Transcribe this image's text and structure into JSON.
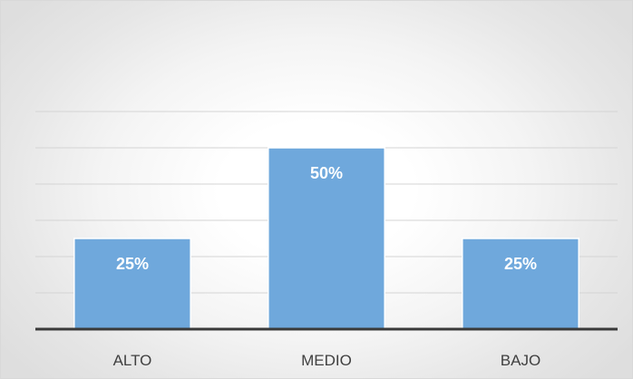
{
  "chart_data": {
    "type": "bar",
    "categories": [
      "ALTO",
      "MEDIO",
      "BAJO"
    ],
    "values": [
      25,
      50,
      25
    ],
    "data_labels": [
      "25%",
      "50%",
      "25%"
    ],
    "title": "",
    "xlabel": "",
    "ylabel": "",
    "ylim": [
      0,
      60
    ],
    "y_gridline_step": 10,
    "grid": true,
    "bar_color": "#6fa8dc",
    "baseline_color": "#3a3a3a",
    "gridline_color": "#d4d4d4",
    "show_y_tick_labels": false
  }
}
